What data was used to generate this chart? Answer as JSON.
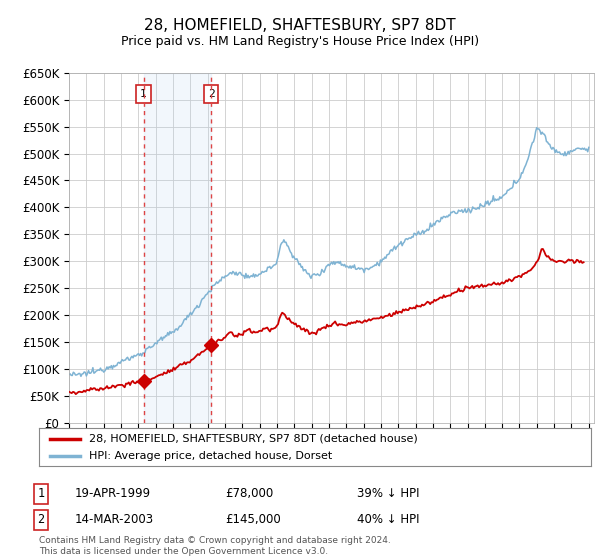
{
  "title": "28, HOMEFIELD, SHAFTESBURY, SP7 8DT",
  "subtitle": "Price paid vs. HM Land Registry's House Price Index (HPI)",
  "ylabel_ticks": [
    "£0",
    "£50K",
    "£100K",
    "£150K",
    "£200K",
    "£250K",
    "£300K",
    "£350K",
    "£400K",
    "£450K",
    "£500K",
    "£550K",
    "£600K",
    "£650K"
  ],
  "ylim": [
    0,
    650000
  ],
  "ytick_vals": [
    0,
    50000,
    100000,
    150000,
    200000,
    250000,
    300000,
    350000,
    400000,
    450000,
    500000,
    550000,
    600000,
    650000
  ],
  "purchase1_year": 1999.3,
  "purchase1_price": 78000,
  "purchase2_year": 2003.2,
  "purchase2_price": 145000,
  "legend_line1": "28, HOMEFIELD, SHAFTESBURY, SP7 8DT (detached house)",
  "legend_line2": "HPI: Average price, detached house, Dorset",
  "copyright_text": "Contains HM Land Registry data © Crown copyright and database right 2024.\nThis data is licensed under the Open Government Licence v3.0.",
  "table_row1": [
    "1",
    "19-APR-1999",
    "£78,000",
    "39% ↓ HPI"
  ],
  "table_row2": [
    "2",
    "14-MAR-2003",
    "£145,000",
    "40% ↓ HPI"
  ],
  "red_color": "#cc0000",
  "blue_color": "#7fb3d3",
  "shade_color": "#ddeeff",
  "grid_color": "#cccccc",
  "bg_color": "#ffffff"
}
